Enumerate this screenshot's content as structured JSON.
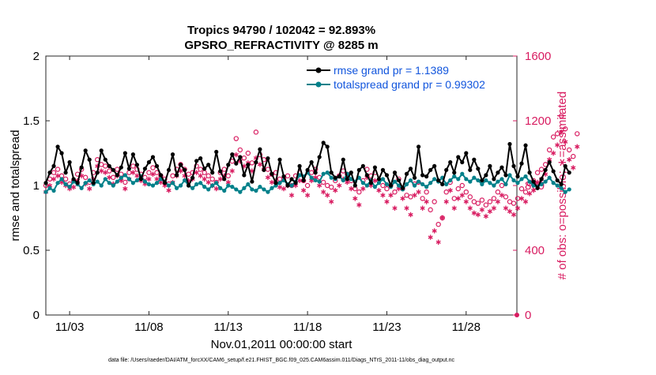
{
  "chart_data": {
    "type": "line",
    "title_line1": "Tropics 94790 / 102042 = 92.893%",
    "title_line2": "GPSRO_REFRACTIVITY @ 8285 m",
    "xlabel": "Nov.01,2011 00:00:00 start",
    "ylabel_left": "rmse and totalspread",
    "ylabel_right": "# of obs: o=possible; ∗=assimilated",
    "footer": "data file: /Users/raeder/DAI/ATM_forcXX/CAM6_setup/f.e21.FHIST_BGC.f09_025.CAM6assim.011/Diags_NTrS_2011-11/obs_diag_output.nc",
    "xlim": [
      1.5,
      31.2
    ],
    "ylim_left": [
      0,
      2
    ],
    "ylim_right": [
      0,
      1600
    ],
    "x_ticks": [
      3,
      8,
      13,
      18,
      23,
      28
    ],
    "x_tick_labels": [
      "11/03",
      "11/08",
      "11/13",
      "11/18",
      "11/23",
      "11/28"
    ],
    "y_left_ticks": [
      0,
      0.5,
      1,
      1.5,
      2
    ],
    "y_left_tick_labels": [
      "0",
      "0.5",
      "1",
      "1.5",
      "2"
    ],
    "y_right_ticks": [
      0,
      400,
      800,
      1200,
      1600
    ],
    "y_right_tick_labels": [
      "0",
      "400",
      "800",
      "1200",
      "1600"
    ],
    "legend_position": "top-right",
    "colors": {
      "rmse": "#000000",
      "spread": "#00808a",
      "obs": "#d81b60",
      "legend_text": "#1155dd"
    },
    "series": [
      {
        "name": "rmse grand pr = 1.1389",
        "key": "rmse",
        "x_start": 1.5,
        "x_step": 0.25,
        "values": [
          1.02,
          1.1,
          1.15,
          1.3,
          1.25,
          1.1,
          1.18,
          1.05,
          1.02,
          1.14,
          1.27,
          1.2,
          1.02,
          1.1,
          1.27,
          1.2,
          1.15,
          1.12,
          1.08,
          1.14,
          1.25,
          1.13,
          1.24,
          1.16,
          1.05,
          1.13,
          1.18,
          1.22,
          1.15,
          1.08,
          1.02,
          1.12,
          1.24,
          1.08,
          1.16,
          1.12,
          1.0,
          1.06,
          1.19,
          1.21,
          1.13,
          1.16,
          1.1,
          1.26,
          1.11,
          1.05,
          1.16,
          1.24,
          1.17,
          1.22,
          1.08,
          1.16,
          1.03,
          1.18,
          1.28,
          1.12,
          1.21,
          1.09,
          1.02,
          1.2,
          1.07,
          1.0,
          1.05,
          1.02,
          1.15,
          1.04,
          1.12,
          1.18,
          1.1,
          1.22,
          1.33,
          1.3,
          1.1,
          1.06,
          1.07,
          1.2,
          1.05,
          1.1,
          1.0,
          1.12,
          1.15,
          1.08,
          1.02,
          1.14,
          1.05,
          1.12,
          1.08,
          1.0,
          1.1,
          1.04,
          0.98,
          1.09,
          1.13,
          1.06,
          1.3,
          1.08,
          1.07,
          1.12,
          1.15,
          1.04,
          1.01,
          1.12,
          1.18,
          1.1,
          1.22,
          1.18,
          1.25,
          1.12,
          1.2,
          1.13,
          1.04,
          1.08,
          1.15,
          1.05,
          1.1,
          1.14,
          1.08,
          1.32,
          1.15,
          1.07,
          1.17,
          1.31,
          1.1,
          1.03,
          0.98,
          1.05,
          1.12,
          1.18,
          1.11,
          1.04,
          1.01,
          1.15,
          1.1
        ]
      },
      {
        "name": "totalspread grand pr = 0.99302",
        "key": "spread",
        "x_start": 1.5,
        "x_step": 0.25,
        "values": [
          0.95,
          0.98,
          0.96,
          1.02,
          1.05,
          1.01,
          0.99,
          1.03,
          1.01,
          0.98,
          1.02,
          1.04,
          1.01,
          1.03,
          1.0,
          1.05,
          1.02,
          1.0,
          1.03,
          1.06,
          1.08,
          1.05,
          1.02,
          1.04,
          1.07,
          1.03,
          1.01,
          1.0,
          1.02,
          1.05,
          1.03,
          1.0,
          1.02,
          0.98,
          1.0,
          1.04,
          1.0,
          0.98,
          1.01,
          1.02,
          0.99,
          0.97,
          1.0,
          1.02,
          0.98,
          0.96,
          1.0,
          0.99,
          0.97,
          0.95,
          0.98,
          1.01,
          0.97,
          0.96,
          0.99,
          0.97,
          0.95,
          0.98,
          1.0,
          1.02,
          1.04,
          1.01,
          1.0,
          1.03,
          1.08,
          1.07,
          1.1,
          1.06,
          1.04,
          1.03,
          1.09,
          1.1,
          1.06,
          1.05,
          1.07,
          1.04,
          1.09,
          1.05,
          1.03,
          1.06,
          1.02,
          1.0,
          1.04,
          0.99,
          1.02,
          1.05,
          1.01,
          0.99,
          1.03,
          1.0,
          0.97,
          1.01,
          1.04,
          1.0,
          1.03,
          1.01,
          0.99,
          1.02,
          1.05,
          1.03,
          1.06,
          1.01,
          1.04,
          1.07,
          1.05,
          1.09,
          1.05,
          1.03,
          1.06,
          1.04,
          1.01,
          1.04,
          1.02,
          1.0,
          1.03,
          1.05,
          1.01,
          1.08,
          1.04,
          1.02,
          1.05,
          1.07,
          1.03,
          1.0,
          0.99,
          1.01,
          1.03,
          1.06,
          1.02,
          1.0,
          0.98,
          0.95,
          0.97
        ]
      },
      {
        "name": "possible",
        "key": "possible",
        "x_start": 1.5,
        "x_step": 0.25,
        "values": [
          800,
          840,
          880,
          900,
          860,
          840,
          810,
          830,
          870,
          900,
          850,
          820,
          880,
          960,
          930,
          920,
          890,
          850,
          900,
          870,
          820,
          880,
          920,
          900,
          870,
          850,
          880,
          910,
          880,
          860,
          840,
          810,
          860,
          900,
          930,
          900,
          870,
          880,
          920,
          900,
          880,
          860,
          840,
          820,
          880,
          900,
          860,
          950,
          1090,
          1020,
          970,
          1000,
          940,
          1130,
          990,
          960,
          900,
          870,
          880,
          840,
          840,
          860,
          800,
          860,
          880,
          830,
          800,
          880,
          900,
          850,
          820,
          800,
          790,
          830,
          860,
          890,
          870,
          830,
          780,
          760,
          830,
          900,
          860,
          880,
          830,
          800,
          780,
          800,
          760,
          840,
          780,
          740,
          730,
          810,
          820,
          720,
          760,
          650,
          700,
          560,
          600,
          760,
          820,
          720,
          780,
          800,
          760,
          730,
          700,
          690,
          710,
          680,
          700,
          720,
          760,
          800,
          730,
          700,
          690,
          720,
          780,
          760,
          810,
          830,
          880,
          900,
          930,
          1020,
          1100,
          1120,
          1230,
          1150,
          1020,
          980,
          1120
        ]
      },
      {
        "name": "assimilated",
        "key": "assimilated",
        "x_start": 1.5,
        "x_step": 0.25,
        "values": [
          760,
          800,
          840,
          860,
          820,
          800,
          780,
          790,
          830,
          860,
          810,
          780,
          840,
          920,
          890,
          880,
          850,
          810,
          860,
          830,
          780,
          840,
          880,
          860,
          830,
          810,
          840,
          870,
          840,
          820,
          800,
          770,
          820,
          860,
          890,
          860,
          830,
          840,
          880,
          860,
          840,
          820,
          800,
          780,
          840,
          860,
          820,
          890,
          990,
          950,
          920,
          940,
          890,
          970,
          930,
          900,
          850,
          820,
          830,
          790,
          780,
          800,
          740,
          800,
          830,
          770,
          740,
          830,
          850,
          800,
          760,
          740,
          700,
          770,
          800,
          840,
          820,
          780,
          720,
          680,
          780,
          850,
          800,
          830,
          770,
          740,
          700,
          740,
          660,
          780,
          720,
          660,
          620,
          740,
          760,
          660,
          700,
          480,
          520,
          450,
          600,
          700,
          770,
          660,
          720,
          740,
          700,
          660,
          630,
          620,
          650,
          610,
          640,
          660,
          700,
          740,
          660,
          640,
          620,
          660,
          720,
          700,
          750,
          770,
          820,
          840,
          870,
          960,
          1000,
          1050,
          1130,
          1070,
          960,
          910,
          1040
        ]
      }
    ]
  }
}
